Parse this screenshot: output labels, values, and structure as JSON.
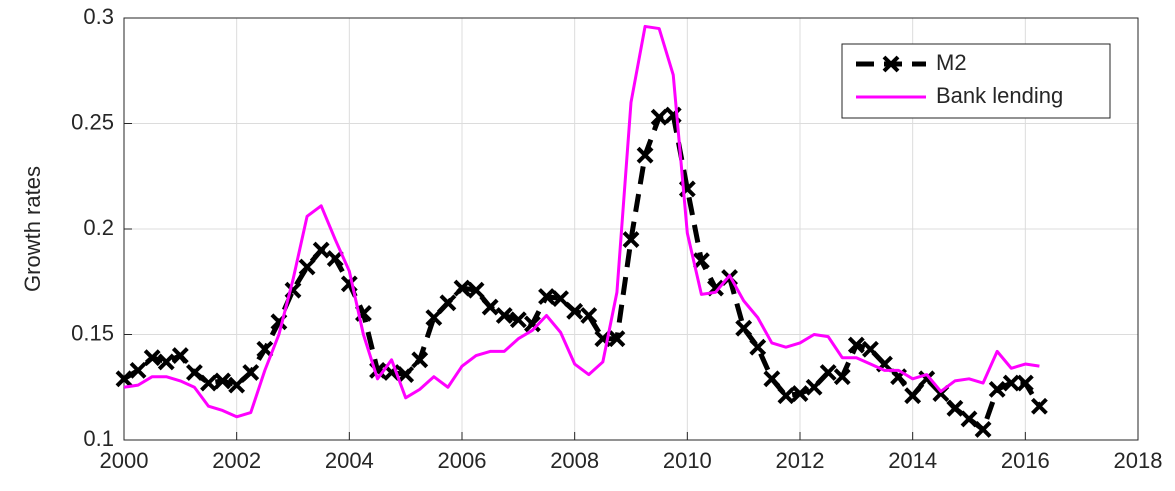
{
  "chart_data": {
    "type": "line",
    "ylabel": "Growth rates",
    "x": [
      2000,
      2000.25,
      2000.5,
      2000.75,
      2001,
      2001.25,
      2001.5,
      2001.75,
      2002,
      2002.25,
      2002.5,
      2002.75,
      2003,
      2003.25,
      2003.5,
      2003.75,
      2004,
      2004.25,
      2004.5,
      2004.75,
      2005,
      2005.25,
      2005.5,
      2005.75,
      2006,
      2006.25,
      2006.5,
      2006.75,
      2007,
      2007.25,
      2007.5,
      2007.75,
      2008,
      2008.25,
      2008.5,
      2008.75,
      2009,
      2009.25,
      2009.5,
      2009.75,
      2010,
      2010.25,
      2010.5,
      2010.75,
      2011,
      2011.25,
      2011.5,
      2011.75,
      2012,
      2012.25,
      2012.5,
      2012.75,
      2013,
      2013.25,
      2013.5,
      2013.75,
      2014,
      2014.25,
      2014.5,
      2014.75,
      2015,
      2015.25,
      2015.5,
      2015.75,
      2016,
      2016.25
    ],
    "series": [
      {
        "name": "M2",
        "color": "#000000",
        "line_style": "dashed",
        "marker": "x",
        "values": [
          0.129,
          0.133,
          0.139,
          0.137,
          0.14,
          0.132,
          0.127,
          0.128,
          0.126,
          0.132,
          0.143,
          0.156,
          0.171,
          0.182,
          0.19,
          0.186,
          0.174,
          0.16,
          0.133,
          0.132,
          0.131,
          0.138,
          0.158,
          0.165,
          0.172,
          0.171,
          0.163,
          0.159,
          0.157,
          0.155,
          0.168,
          0.167,
          0.161,
          0.159,
          0.148,
          0.148,
          0.195,
          0.235,
          0.253,
          0.254,
          0.219,
          0.185,
          0.172,
          0.177,
          0.153,
          0.144,
          0.129,
          0.121,
          0.122,
          0.125,
          0.132,
          0.13,
          0.145,
          0.143,
          0.136,
          0.13,
          0.121,
          0.129,
          0.122,
          0.115,
          0.11,
          0.105,
          0.124,
          0.127,
          0.127,
          0.116
        ]
      },
      {
        "name": "Bank lending",
        "color": "#ff00ff",
        "line_style": "solid",
        "values": [
          0.125,
          0.126,
          0.13,
          0.13,
          0.128,
          0.125,
          0.116,
          0.114,
          0.111,
          0.113,
          0.133,
          0.15,
          0.176,
          0.206,
          0.211,
          0.195,
          0.18,
          0.15,
          0.129,
          0.138,
          0.12,
          0.124,
          0.13,
          0.125,
          0.135,
          0.14,
          0.142,
          0.142,
          0.148,
          0.152,
          0.159,
          0.151,
          0.136,
          0.131,
          0.137,
          0.17,
          0.26,
          0.296,
          0.295,
          0.273,
          0.198,
          0.169,
          0.17,
          0.178,
          0.166,
          0.158,
          0.146,
          0.144,
          0.146,
          0.15,
          0.149,
          0.139,
          0.139,
          0.136,
          0.133,
          0.133,
          0.129,
          0.131,
          0.123,
          0.128,
          0.129,
          0.127,
          0.142,
          0.134,
          0.136,
          0.135
        ]
      }
    ],
    "xlim": [
      2000,
      2018
    ],
    "xticks": [
      2000,
      2002,
      2004,
      2006,
      2008,
      2010,
      2012,
      2014,
      2016,
      2018
    ],
    "ylim": [
      0.1,
      0.3
    ],
    "yticks": [
      0.1,
      0.15,
      0.2,
      0.25,
      0.3
    ],
    "grid": true,
    "legend": "top-right"
  }
}
